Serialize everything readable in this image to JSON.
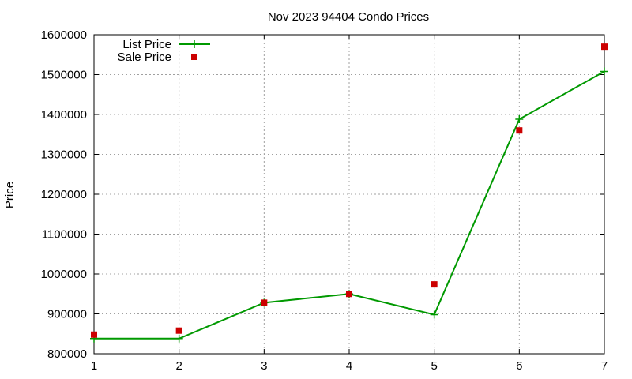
{
  "chart_data": {
    "type": "line",
    "title": "Nov 2023 94404 Condo Prices",
    "xlabel": "",
    "ylabel": "Price",
    "x": [
      1,
      2,
      3,
      4,
      5,
      6,
      7
    ],
    "xlim": [
      1,
      7
    ],
    "ylim": [
      800000,
      1600000
    ],
    "x_ticks": [
      "1",
      "2",
      "3",
      "4",
      "5",
      "6",
      "7"
    ],
    "y_ticks": [
      "800000",
      "900000",
      "1000000",
      "1100000",
      "1200000",
      "1300000",
      "1400000",
      "1500000",
      "1600000"
    ],
    "grid": true,
    "legend_position": "top-left",
    "series": [
      {
        "name": "List Price",
        "style": "line-with-plus-markers",
        "color": "#009900",
        "values": [
          838000,
          838000,
          928000,
          950000,
          898000,
          1388000,
          1508000
        ]
      },
      {
        "name": "Sale Price",
        "style": "square-markers",
        "color": "#cc0000",
        "values": [
          848000,
          858000,
          928000,
          950000,
          974000,
          1360000,
          1570000
        ]
      }
    ]
  }
}
